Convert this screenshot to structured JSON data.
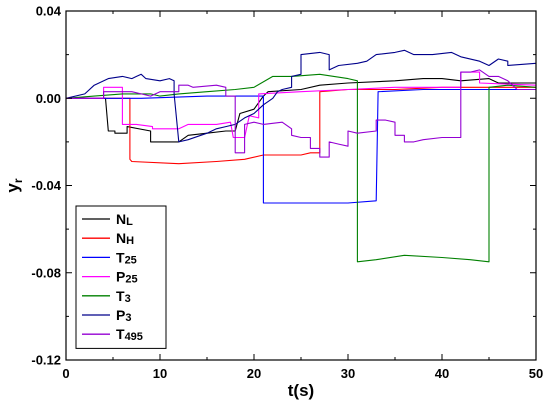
{
  "chart_data": {
    "type": "line",
    "xlabel": "t(s)",
    "ylabel": "yr",
    "xlim": [
      0,
      50
    ],
    "ylim": [
      -0.12,
      0.04
    ],
    "xticks": [
      0,
      10,
      20,
      30,
      40,
      50
    ],
    "xtick_labels": [
      "0",
      "10",
      "20",
      "30",
      "40",
      "50"
    ],
    "yticks": [
      -0.12,
      -0.08,
      -0.04,
      0.0,
      0.04
    ],
    "ytick_labels": [
      "-0.12",
      "-0.08",
      "-0.04",
      "0.00",
      "0.04"
    ],
    "grid": false,
    "legend_position": "bottom-left",
    "series": [
      {
        "name": "NL",
        "label_main": "N",
        "label_sub": "L",
        "color": "#000000",
        "points": [
          [
            0,
            0
          ],
          [
            4.2,
            0
          ],
          [
            4.5,
            -0.015
          ],
          [
            5.2,
            -0.015
          ],
          [
            5.2,
            -0.016
          ],
          [
            6.5,
            -0.016
          ],
          [
            6.5,
            -0.013
          ],
          [
            9,
            -0.015
          ],
          [
            9,
            -0.02
          ],
          [
            12,
            -0.02
          ],
          [
            13,
            -0.017
          ],
          [
            15,
            -0.016
          ],
          [
            17,
            -0.015
          ],
          [
            18,
            -0.015
          ],
          [
            18.5,
            -0.007
          ],
          [
            20,
            -0.005
          ],
          [
            21,
            0.001
          ],
          [
            21.5,
            0.003
          ],
          [
            25,
            0.004
          ],
          [
            27,
            0.006
          ],
          [
            30,
            0.007
          ],
          [
            35,
            0.008
          ],
          [
            38,
            0.009
          ],
          [
            40,
            0.009
          ],
          [
            42,
            0.008
          ],
          [
            45,
            0.009
          ],
          [
            46,
            0.007
          ],
          [
            50,
            0.007
          ]
        ]
      },
      {
        "name": "NH",
        "label_main": "N",
        "label_sub": "H",
        "color": "#ff0000",
        "points": [
          [
            0,
            0
          ],
          [
            6.8,
            0
          ],
          [
            6.8,
            -0.028
          ],
          [
            7,
            -0.029
          ],
          [
            12,
            -0.03
          ],
          [
            16,
            -0.029
          ],
          [
            19,
            -0.028
          ],
          [
            21,
            -0.026
          ],
          [
            25,
            -0.026
          ],
          [
            26,
            -0.025
          ],
          [
            27,
            -0.025
          ],
          [
            27,
            0.003
          ],
          [
            30,
            0.004
          ],
          [
            35,
            0.004
          ],
          [
            40,
            0.005
          ],
          [
            45,
            0.005
          ],
          [
            50,
            0.005
          ]
        ]
      },
      {
        "name": "T25",
        "label_main": "T",
        "label_sub": "25",
        "color": "#0000ff",
        "points": [
          [
            0,
            0
          ],
          [
            8,
            0
          ],
          [
            15,
            0.001
          ],
          [
            21,
            0.001
          ],
          [
            21,
            -0.048
          ],
          [
            25,
            -0.048
          ],
          [
            30,
            -0.048
          ],
          [
            33,
            -0.047
          ],
          [
            33.2,
            0.003
          ],
          [
            38,
            0.004
          ],
          [
            42,
            0.004
          ],
          [
            45,
            0.004
          ],
          [
            50,
            0.004
          ]
        ]
      },
      {
        "name": "P25",
        "label_main": "P",
        "label_sub": "25",
        "color": "#ff00ff",
        "points": [
          [
            0,
            0
          ],
          [
            4,
            0
          ],
          [
            4,
            0.005
          ],
          [
            6,
            0.005
          ],
          [
            6,
            -0.012
          ],
          [
            7.5,
            -0.012
          ],
          [
            7.5,
            -0.012
          ],
          [
            9.2,
            -0.013
          ],
          [
            9.2,
            -0.014
          ],
          [
            12,
            -0.014
          ],
          [
            13,
            -0.012
          ],
          [
            16,
            -0.012
          ],
          [
            17.5,
            -0.011
          ],
          [
            17.8,
            -0.018
          ],
          [
            19,
            -0.018
          ],
          [
            19.5,
            -0.008
          ],
          [
            20.5,
            -0.009
          ],
          [
            20.5,
            0.002
          ],
          [
            25,
            0.003
          ],
          [
            30,
            0.004
          ],
          [
            35,
            0.005
          ],
          [
            40,
            0.005
          ],
          [
            42,
            0.005
          ],
          [
            42,
            0.012
          ],
          [
            44,
            0.012
          ],
          [
            44,
            0.007
          ],
          [
            50,
            0.006
          ]
        ]
      },
      {
        "name": "T3",
        "label_main": "T",
        "label_sub": "3",
        "color": "#008000",
        "points": [
          [
            0,
            0
          ],
          [
            3,
            0.001
          ],
          [
            6,
            0.002
          ],
          [
            9,
            0.002
          ],
          [
            10,
            0.001
          ],
          [
            12,
            0.002
          ],
          [
            15,
            0.003
          ],
          [
            18,
            0.004
          ],
          [
            20,
            0.005
          ],
          [
            22,
            0.01
          ],
          [
            24,
            0.01
          ],
          [
            27,
            0.011
          ],
          [
            30,
            0.009
          ],
          [
            31,
            0.008
          ],
          [
            31,
            -0.075
          ],
          [
            33,
            -0.074
          ],
          [
            36,
            -0.072
          ],
          [
            40,
            -0.073
          ],
          [
            43,
            -0.074
          ],
          [
            45,
            -0.075
          ],
          [
            45,
            0.005
          ],
          [
            47,
            0.006
          ],
          [
            50,
            0.005
          ]
        ]
      },
      {
        "name": "P3",
        "label_main": "P",
        "label_sub": "3",
        "color": "#00008b",
        "points": [
          [
            0,
            0
          ],
          [
            2,
            0.002
          ],
          [
            3,
            0.006
          ],
          [
            4.5,
            0.009
          ],
          [
            6,
            0.01
          ],
          [
            7,
            0.009
          ],
          [
            7.5,
            0.01
          ],
          [
            8,
            0.011
          ],
          [
            8.5,
            0.009
          ],
          [
            10,
            0.008
          ],
          [
            11,
            0.009
          ],
          [
            11.5,
            0.008
          ],
          [
            11.5,
            0.002
          ],
          [
            12,
            -0.02
          ],
          [
            13,
            -0.019
          ],
          [
            15,
            -0.016
          ],
          [
            16,
            -0.014
          ],
          [
            17,
            -0.013
          ],
          [
            18,
            -0.012
          ],
          [
            19,
            -0.009
          ],
          [
            20,
            -0.007
          ],
          [
            21,
            -0.003
          ],
          [
            22,
            0.0
          ],
          [
            22.5,
            0.003
          ],
          [
            23,
            0.004
          ],
          [
            24,
            0.005
          ],
          [
            24,
            0.01
          ],
          [
            25,
            0.011
          ],
          [
            25,
            0.02
          ],
          [
            27,
            0.021
          ],
          [
            28,
            0.02
          ],
          [
            28,
            0.013
          ],
          [
            29,
            0.015
          ],
          [
            31,
            0.016
          ],
          [
            32,
            0.017
          ],
          [
            33,
            0.02
          ],
          [
            35,
            0.021
          ],
          [
            36,
            0.022
          ],
          [
            37,
            0.02
          ],
          [
            39,
            0.02
          ],
          [
            41,
            0.021
          ],
          [
            42,
            0.019
          ],
          [
            44,
            0.017
          ],
          [
            45,
            0.015
          ],
          [
            46,
            0.018
          ],
          [
            47,
            0.017
          ],
          [
            47,
            0.015
          ],
          [
            50,
            0.016
          ]
        ]
      },
      {
        "name": "T495",
        "label_main": "T",
        "label_sub": "495",
        "color": "#9400d3",
        "points": [
          [
            0,
            0
          ],
          [
            4,
            0
          ],
          [
            4,
            0.003
          ],
          [
            7,
            0.003
          ],
          [
            8,
            0.002
          ],
          [
            9,
            0.001
          ],
          [
            10,
            0.003
          ],
          [
            12,
            0.003
          ],
          [
            12,
            0.006
          ],
          [
            13,
            0.006
          ],
          [
            13.5,
            0.005
          ],
          [
            16,
            0.006
          ],
          [
            17,
            0.005
          ],
          [
            17,
            0.001
          ],
          [
            18,
            0.001
          ],
          [
            18,
            -0.025
          ],
          [
            19,
            -0.025
          ],
          [
            19,
            -0.012
          ],
          [
            20,
            -0.011
          ],
          [
            21,
            -0.012
          ],
          [
            23,
            -0.011
          ],
          [
            24,
            -0.014
          ],
          [
            24,
            -0.017
          ],
          [
            25,
            -0.018
          ],
          [
            26,
            -0.018
          ],
          [
            26,
            -0.023
          ],
          [
            27,
            -0.023
          ],
          [
            27,
            -0.027
          ],
          [
            28,
            -0.027
          ],
          [
            28,
            -0.02
          ],
          [
            29,
            -0.021
          ],
          [
            30,
            -0.022
          ],
          [
            30,
            -0.015
          ],
          [
            31,
            -0.016
          ],
          [
            33,
            -0.015
          ],
          [
            33,
            -0.01
          ],
          [
            34,
            -0.01
          ],
          [
            35,
            -0.011
          ],
          [
            35,
            -0.017
          ],
          [
            36,
            -0.017
          ],
          [
            36,
            -0.02
          ],
          [
            37,
            -0.02
          ],
          [
            38,
            -0.019
          ],
          [
            40,
            -0.018
          ],
          [
            42,
            -0.018
          ],
          [
            42,
            0.012
          ],
          [
            43,
            0.012
          ],
          [
            44,
            0.013
          ],
          [
            45,
            0.01
          ],
          [
            46,
            0.01
          ],
          [
            47,
            0.008
          ],
          [
            48,
            0.004
          ],
          [
            50,
            0.004
          ]
        ]
      }
    ]
  }
}
